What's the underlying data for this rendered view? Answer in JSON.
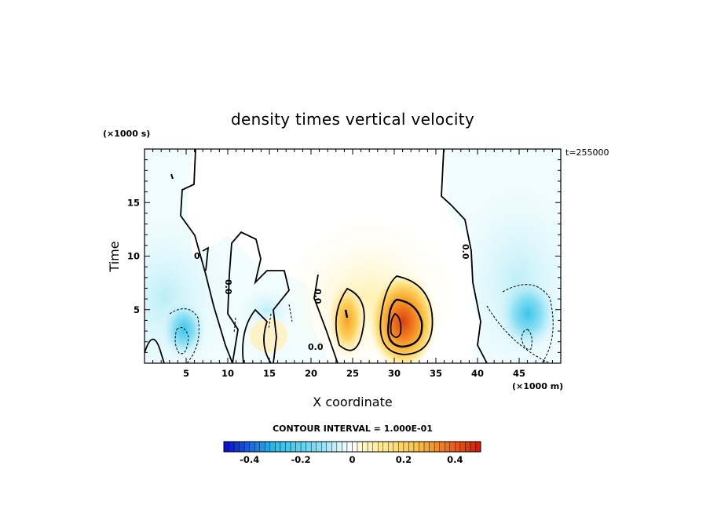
{
  "chart_data": {
    "type": "heatmap",
    "title": "density times vertical velocity",
    "xlabel": "X coordinate",
    "ylabel": "Time",
    "x_unit": "(×1000 m)",
    "y_unit": "(×1000 s)",
    "xlim": [
      0,
      50
    ],
    "ylim": [
      0,
      20
    ],
    "x_ticks": [
      "5",
      "10",
      "15",
      "20",
      "25",
      "30",
      "35",
      "40",
      "45"
    ],
    "y_ticks": [
      "5",
      "10",
      "15"
    ],
    "time_stamp": "t=255000",
    "contour_interval_text": "CONTOUR INTERVAL = 1.000E-01",
    "contour_labels": [
      "0",
      "0.0",
      "0.0",
      "0.0",
      "0.0"
    ],
    "colorbar": {
      "range": [
        -0.5,
        0.5
      ],
      "ticks": [
        "-0.4",
        "-0.2",
        "0",
        "0.2",
        "0.4"
      ],
      "colors": {
        "neg_strong": "#0a0ad0",
        "neg_mid": "#27bfe8",
        "neg_weak": "#d6f6fb",
        "zero": "#ffffff",
        "pos_weak": "#fff6c0",
        "pos_mid": "#f9c44a",
        "pos_strong": "#cc1a08"
      }
    },
    "features": [
      {
        "kind": "positive-max",
        "x": 31,
        "y": 3,
        "value": 0.35
      },
      {
        "kind": "positive",
        "x": 25,
        "y": 5,
        "value": 0.15
      },
      {
        "kind": "negative",
        "x": 5,
        "y": 3,
        "value": -0.2
      },
      {
        "kind": "negative",
        "x": 46,
        "y": 5,
        "value": -0.15
      },
      {
        "kind": "negative",
        "x": 2,
        "y": 6,
        "value": -0.1
      }
    ]
  }
}
